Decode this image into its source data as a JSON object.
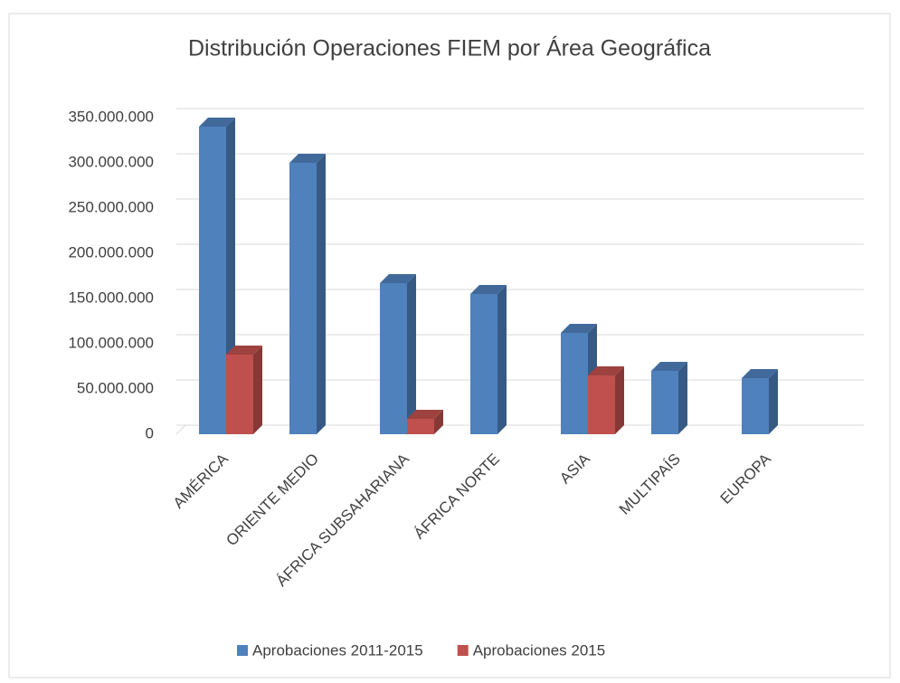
{
  "chart_data": {
    "type": "bar3d",
    "title": "Distribución Operaciones FIEM por Área Geográfica",
    "categories": [
      "AMÉRICA",
      "ORIENTE MEDIO",
      "ÁFRICA SUBSAHARIANA",
      "ÁFRICA NORTE",
      "ASIA",
      "MULTIPAÍS",
      "EUROPA"
    ],
    "series": [
      {
        "name": "Aprobaciones 2011-2015",
        "color": "#4f81bd",
        "values": [
          340000000,
          300000000,
          167000000,
          155000000,
          112000000,
          70000000,
          62000000
        ]
      },
      {
        "name": "Aprobaciones 2015",
        "color": "#c0504d",
        "values": [
          88000000,
          null,
          17000000,
          null,
          65000000,
          null,
          null
        ]
      }
    ],
    "ylim": [
      0,
      350000000
    ],
    "yticks": [
      0,
      {
        "value": 50000000,
        "label": "50.000.000"
      },
      {
        "value": 100000000,
        "label": "100.000.000"
      },
      {
        "value": 150000000,
        "label": "150.000.000"
      },
      {
        "value": 200000000,
        "label": "200.000.000"
      },
      {
        "value": 250000000,
        "label": "250.000.000"
      },
      {
        "value": 300000000,
        "label": "300.000.000"
      },
      {
        "value": 350000000,
        "label": "350.000.000"
      }
    ],
    "grid": true,
    "legend": "bottom"
  }
}
